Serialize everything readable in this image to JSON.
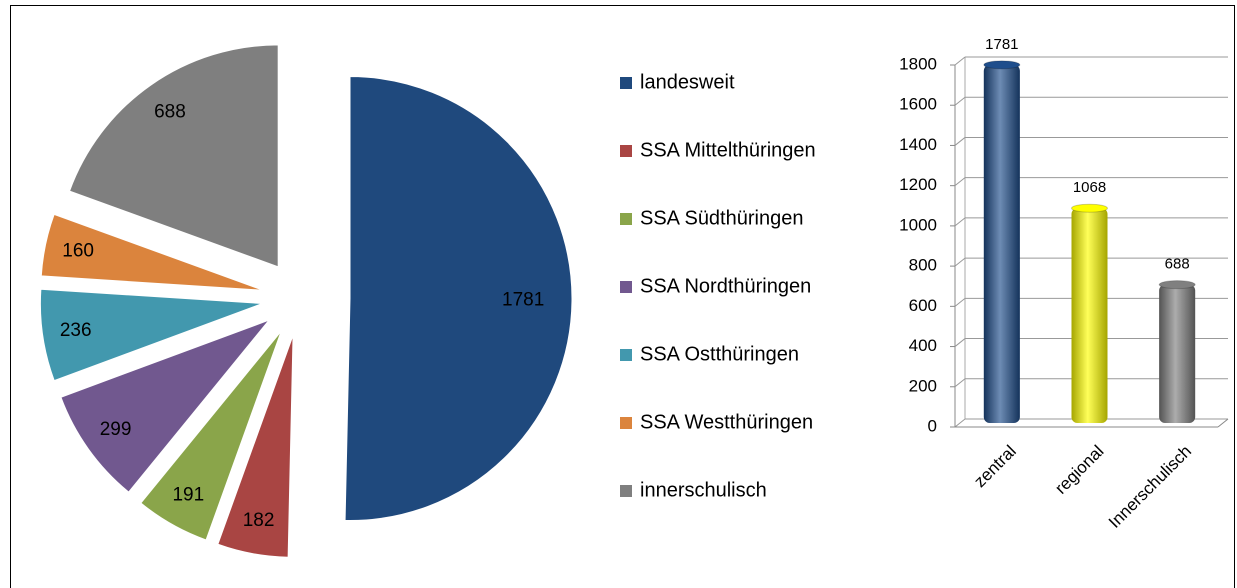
{
  "chart_data": [
    {
      "type": "pie",
      "categories": [
        "landesweit",
        "SSA Mittelthüringen",
        "SSA Südthüringen",
        "SSA Nordthüringen",
        "SSA Ostthüringen",
        "SSA Westthüringen",
        "innerschulisch"
      ],
      "values": [
        1781,
        182,
        191,
        299,
        236,
        160,
        688
      ],
      "colors": [
        "#1f497d",
        "#a94543",
        "#8aa54a",
        "#71588f",
        "#4298ae",
        "#db843d",
        "#7f7f7f"
      ],
      "legend": "right"
    },
    {
      "type": "bar",
      "categories": [
        "zentral",
        "regional",
        "Innerschulisch"
      ],
      "values": [
        1781,
        1068,
        688
      ],
      "colors": [
        "#1f4e8c",
        "#ffff00",
        "#808080"
      ],
      "ylim": [
        0,
        1800
      ],
      "yticks": [
        0,
        200,
        400,
        600,
        800,
        1000,
        1200,
        1400,
        1600,
        1800
      ],
      "grid": true
    }
  ]
}
